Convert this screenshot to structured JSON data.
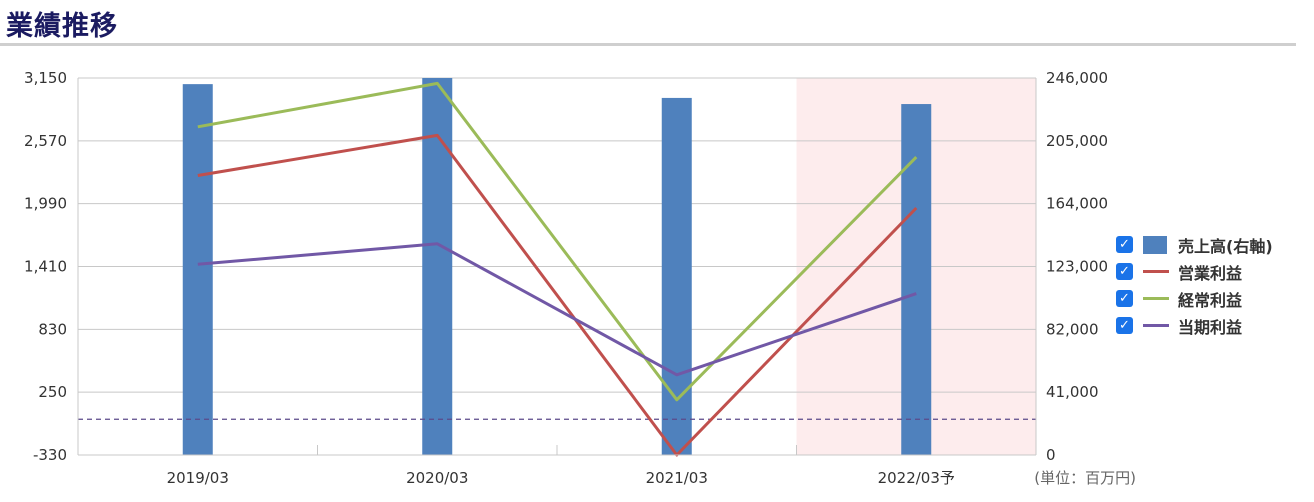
{
  "title": "業績推移",
  "unit_note": "(単位：百万円)",
  "chart_data": {
    "type": "bar",
    "categories": [
      "2019/03",
      "2020/03",
      "2021/03",
      "2022/03予"
    ],
    "left_axis": {
      "ticks": [
        "3,150",
        "2,570",
        "1,990",
        "1,410",
        "830",
        "250",
        "-330"
      ],
      "range": [
        -330,
        3150
      ]
    },
    "right_axis": {
      "ticks": [
        "246,000",
        "205,000",
        "164,000",
        "123,000",
        "82,000",
        "41,000",
        "0"
      ],
      "range": [
        0,
        246000
      ]
    },
    "forecast_category": "2022/03予",
    "reference_line_left_value": 0,
    "grid": true,
    "legend_position": "right",
    "series": [
      {
        "name": "売上高(右軸)",
        "type": "bar",
        "axis": "right",
        "color": "#4f81bd",
        "values": [
          242000,
          246000,
          233000,
          229000
        ]
      },
      {
        "name": "営業利益",
        "type": "line",
        "axis": "left",
        "color": "#c0504d",
        "values": [
          2250,
          2620,
          -330,
          1950
        ]
      },
      {
        "name": "経常利益",
        "type": "line",
        "axis": "left",
        "color": "#9bbb59",
        "values": [
          2700,
          3100,
          180,
          2420
        ]
      },
      {
        "name": "当期利益",
        "type": "line",
        "axis": "left",
        "color": "#7158a6",
        "values": [
          1430,
          1620,
          410,
          1160
        ]
      }
    ]
  },
  "legend": {
    "items": [
      {
        "label": "売上高(右軸)",
        "checked": true,
        "swatch": "bar",
        "color": "#4f81bd"
      },
      {
        "label": "営業利益",
        "checked": true,
        "swatch": "line",
        "color": "#c0504d"
      },
      {
        "label": "経常利益",
        "checked": true,
        "swatch": "line",
        "color": "#9bbb59"
      },
      {
        "label": "当期利益",
        "checked": true,
        "swatch": "line",
        "color": "#7158a6"
      }
    ]
  }
}
